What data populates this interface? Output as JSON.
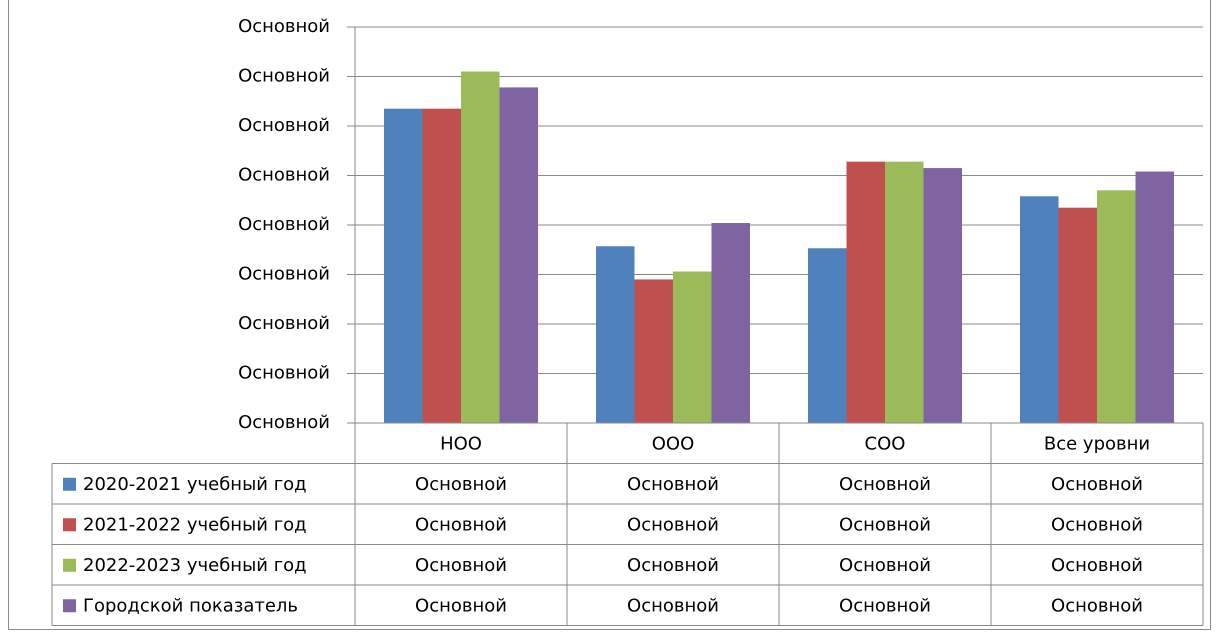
{
  "chart_data": {
    "type": "bar",
    "title": "",
    "xlabel": "",
    "ylabel": "",
    "categories": [
      "НОО",
      "ООО",
      "СОО",
      "Все уровни"
    ],
    "y_tick_labels": [
      "Основной",
      "Основной",
      "Основной",
      "Основной",
      "Основной",
      "Основной",
      "Основной",
      "Основной",
      "Основной"
    ],
    "ylim": [
      0,
      8
    ],
    "grid": true,
    "legend_placement": "data-table-left",
    "series": [
      {
        "name": "2020-2021 учебный год",
        "color": "#4f81bd",
        "values": [
          6.35,
          3.57,
          3.53,
          4.58
        ],
        "table_labels": [
          "Основной",
          "Основной",
          "Основной",
          "Основной"
        ]
      },
      {
        "name": "2021-2022 учебный год",
        "color": "#c0504d",
        "values": [
          6.35,
          2.9,
          5.28,
          4.35
        ],
        "table_labels": [
          "Основной",
          "Основной",
          "Основной",
          "Основной"
        ]
      },
      {
        "name": "2022-2023 учебный год",
        "color": "#9bbb59",
        "values": [
          7.1,
          3.06,
          5.28,
          4.7
        ],
        "table_labels": [
          "Основной",
          "Основной",
          "Основной",
          "Основной"
        ]
      },
      {
        "name": "Городской показатель",
        "color": "#8064a2",
        "values": [
          6.78,
          4.04,
          5.15,
          5.08
        ],
        "table_labels": [
          "Основной",
          "Основной",
          "Основной",
          "Основной"
        ]
      }
    ]
  }
}
